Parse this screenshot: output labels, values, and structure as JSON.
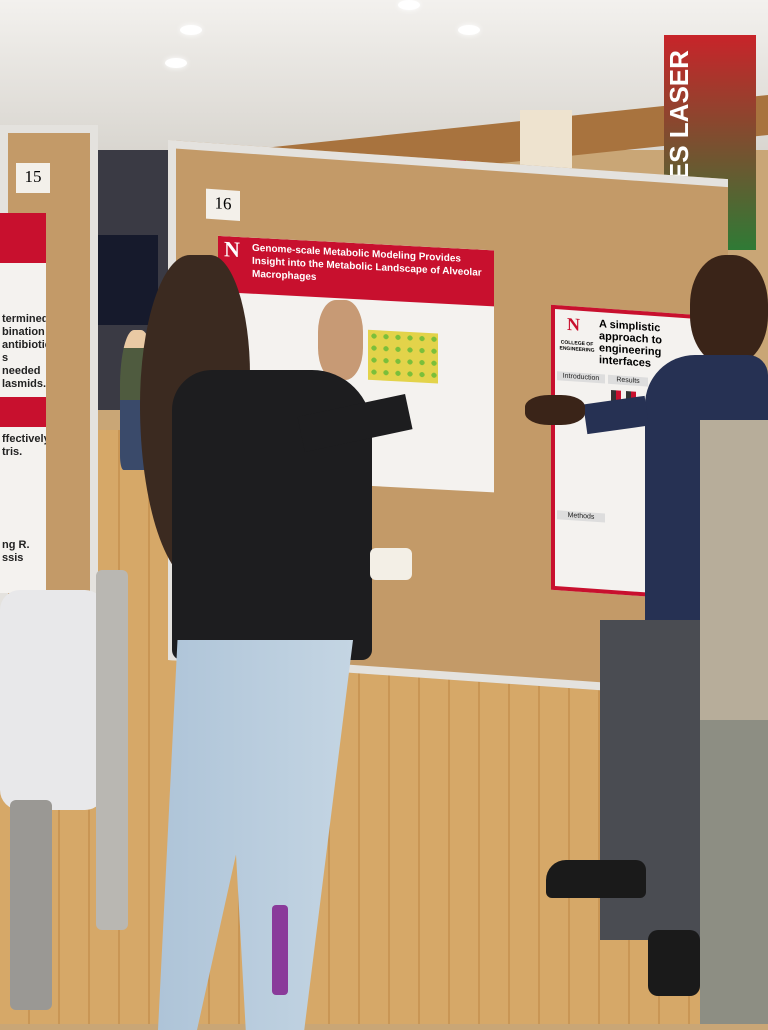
{
  "board_numbers": {
    "left": "15",
    "center": "16"
  },
  "poster_center": {
    "logo": "N",
    "title": "Genome-scale Metabolic Modeling Provides Insight into the Metabolic Landscape of Alveolar Macrophages"
  },
  "poster_right": {
    "logo": "N",
    "college": "COLLEGE OF ENGINEERING",
    "title": "A simplistic approach to engineering interfaces",
    "section_intro": "Introduction",
    "section_results": "Results",
    "section_methods": "Methods"
  },
  "poster_left": {
    "fragments": [
      "termined",
      "bination",
      "antibiotic",
      "s needed",
      "lasmids.",
      "ffectively",
      "tris.",
      "ng R.",
      "ssis"
    ]
  },
  "banner": {
    "text": "OCLES LASER"
  },
  "colors": {
    "unl_red": "#c8102e",
    "cork": "#c39a68",
    "floor": "#d3a466"
  }
}
